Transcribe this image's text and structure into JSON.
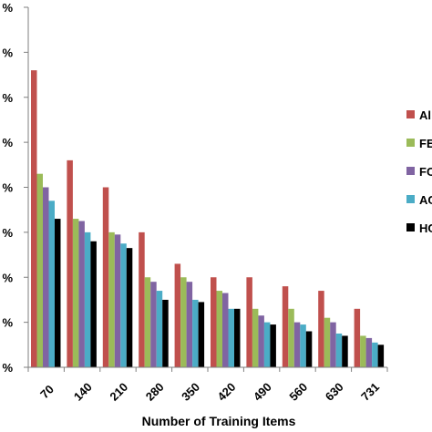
{
  "chart_data": {
    "type": "bar",
    "title": "",
    "xlabel": "Number of Training Items",
    "ylabel": "",
    "categories": [
      "70",
      "140",
      "210",
      "280",
      "350",
      "420",
      "490",
      "560",
      "630",
      "731"
    ],
    "y_tick_labels": [
      "%",
      "%",
      "%",
      "%",
      "%",
      "%",
      "%",
      "%",
      "%"
    ],
    "ylim": [
      0,
      8
    ],
    "grid": false,
    "legend_position": "right",
    "series": [
      {
        "name": "Al",
        "color": "#C0504D",
        "values": [
          6.6,
          4.6,
          4.0,
          3.0,
          2.3,
          2.0,
          2.0,
          1.8,
          1.7,
          1.3
        ]
      },
      {
        "name": "FE",
        "color": "#9BBB59",
        "values": [
          4.3,
          3.3,
          3.0,
          2.0,
          2.0,
          1.7,
          1.3,
          1.3,
          1.1,
          0.7
        ]
      },
      {
        "name": "FC",
        "color": "#8064A2",
        "values": [
          4.0,
          3.25,
          2.95,
          1.9,
          1.9,
          1.65,
          1.15,
          1.0,
          1.0,
          0.65
        ]
      },
      {
        "name": "AC",
        "color": "#4BACC6",
        "values": [
          3.7,
          3.0,
          2.75,
          1.7,
          1.5,
          1.3,
          1.0,
          0.95,
          0.75,
          0.55
        ]
      },
      {
        "name": "HC",
        "color": "#000000",
        "values": [
          3.3,
          2.8,
          2.65,
          1.5,
          1.45,
          1.3,
          0.95,
          0.8,
          0.7,
          0.5
        ]
      }
    ]
  }
}
